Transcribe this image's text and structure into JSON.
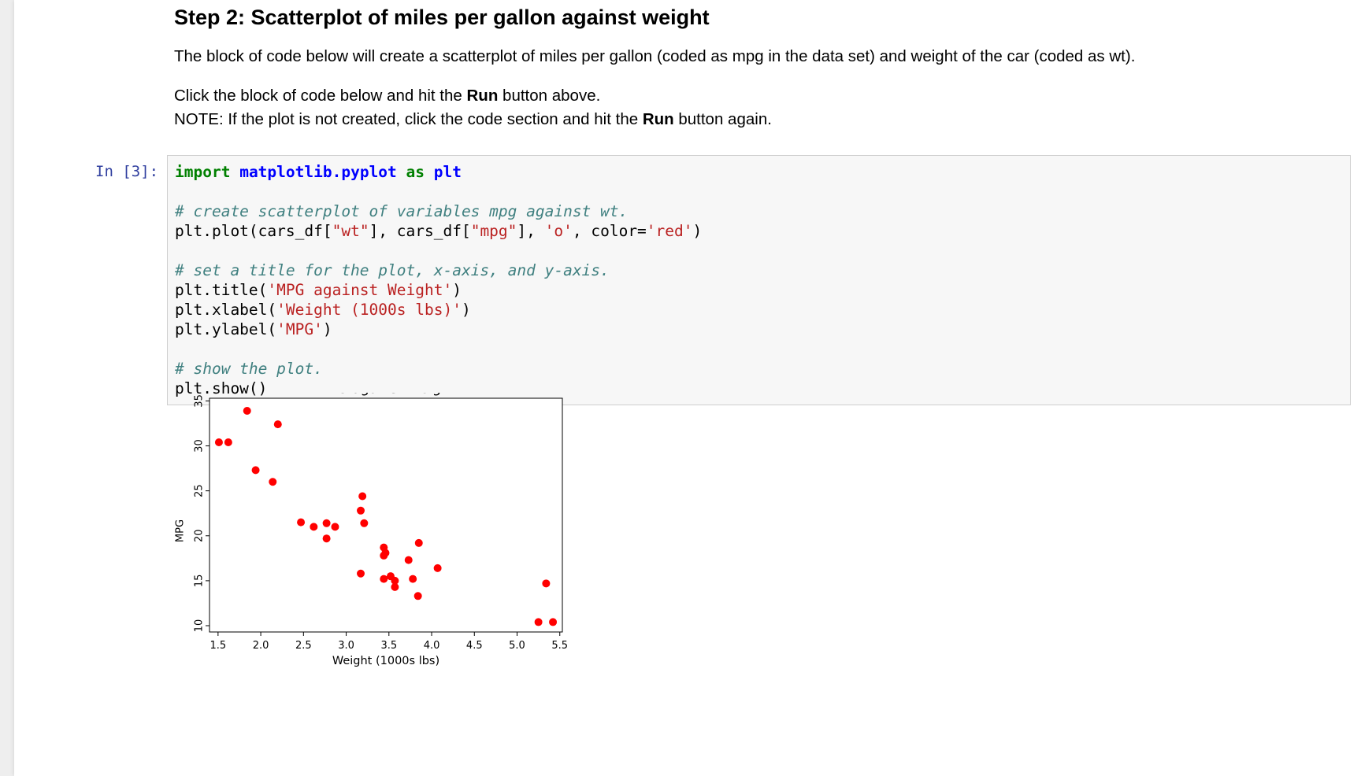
{
  "markdown": {
    "heading": "Step 2: Scatterplot of miles per gallon against weight",
    "p1": "The block of code below will create a scatterplot of miles per gallon (coded as mpg in the data set) and weight of the car (coded as wt).",
    "p2_prefix": "Click the block of code below and hit the ",
    "p2_bold": "Run",
    "p2_suffix": " button above.",
    "p3_prefix": "NOTE: If the plot is not created, click the code section and hit the ",
    "p3_bold": "Run",
    "p3_suffix": " button again."
  },
  "code_cell": {
    "prompt": "In [3]:",
    "lines": [
      "import matplotlib.pyplot as plt",
      "",
      "# create scatterplot of variables mpg against wt.",
      "plt.plot(cars_df[\"wt\"], cars_df[\"mpg\"], 'o', color='red')",
      "",
      "# set a title for the plot, x-axis, and y-axis.",
      "plt.title('MPG against Weight')",
      "plt.xlabel('Weight (1000s lbs)')",
      "plt.ylabel('MPG')",
      "",
      "# show the plot.",
      "plt.show()"
    ]
  },
  "colors": {
    "marker": "#ff0000",
    "prompt": "#303f9f",
    "keyword": "#008000",
    "comment": "#408080",
    "string": "#ba2121"
  },
  "chart_data": {
    "type": "scatter",
    "title": "MPG against Weight",
    "xlabel": "Weight (1000s lbs)",
    "ylabel": "MPG",
    "xlim": [
      1.4,
      5.53
    ],
    "ylim": [
      9.3,
      35.3
    ],
    "xticks": [
      "1.5",
      "2.0",
      "2.5",
      "3.0",
      "3.5",
      "4.0",
      "4.5",
      "5.0",
      "5.5"
    ],
    "yticks": [
      "10",
      "15",
      "20",
      "25",
      "30",
      "35"
    ],
    "grid": false,
    "series": [
      {
        "marker": "o",
        "color": "#ff0000",
        "points": [
          [
            1.51,
            30.4
          ],
          [
            1.62,
            30.4
          ],
          [
            1.84,
            33.9
          ],
          [
            1.94,
            27.3
          ],
          [
            2.14,
            26.0
          ],
          [
            2.2,
            32.4
          ],
          [
            2.47,
            21.5
          ],
          [
            2.62,
            21.0
          ],
          [
            2.77,
            21.4
          ],
          [
            2.77,
            19.7
          ],
          [
            2.87,
            21.0
          ],
          [
            3.17,
            15.8
          ],
          [
            3.17,
            22.8
          ],
          [
            3.19,
            24.4
          ],
          [
            3.21,
            21.4
          ],
          [
            3.44,
            18.7
          ],
          [
            3.44,
            17.8
          ],
          [
            3.44,
            15.2
          ],
          [
            3.46,
            18.1
          ],
          [
            3.52,
            15.5
          ],
          [
            3.57,
            15.0
          ],
          [
            3.57,
            14.3
          ],
          [
            3.73,
            17.3
          ],
          [
            3.78,
            15.2
          ],
          [
            3.84,
            13.3
          ],
          [
            3.85,
            19.2
          ],
          [
            4.07,
            16.4
          ],
          [
            5.25,
            10.4
          ],
          [
            5.34,
            14.7
          ],
          [
            5.42,
            10.4
          ]
        ]
      }
    ]
  }
}
